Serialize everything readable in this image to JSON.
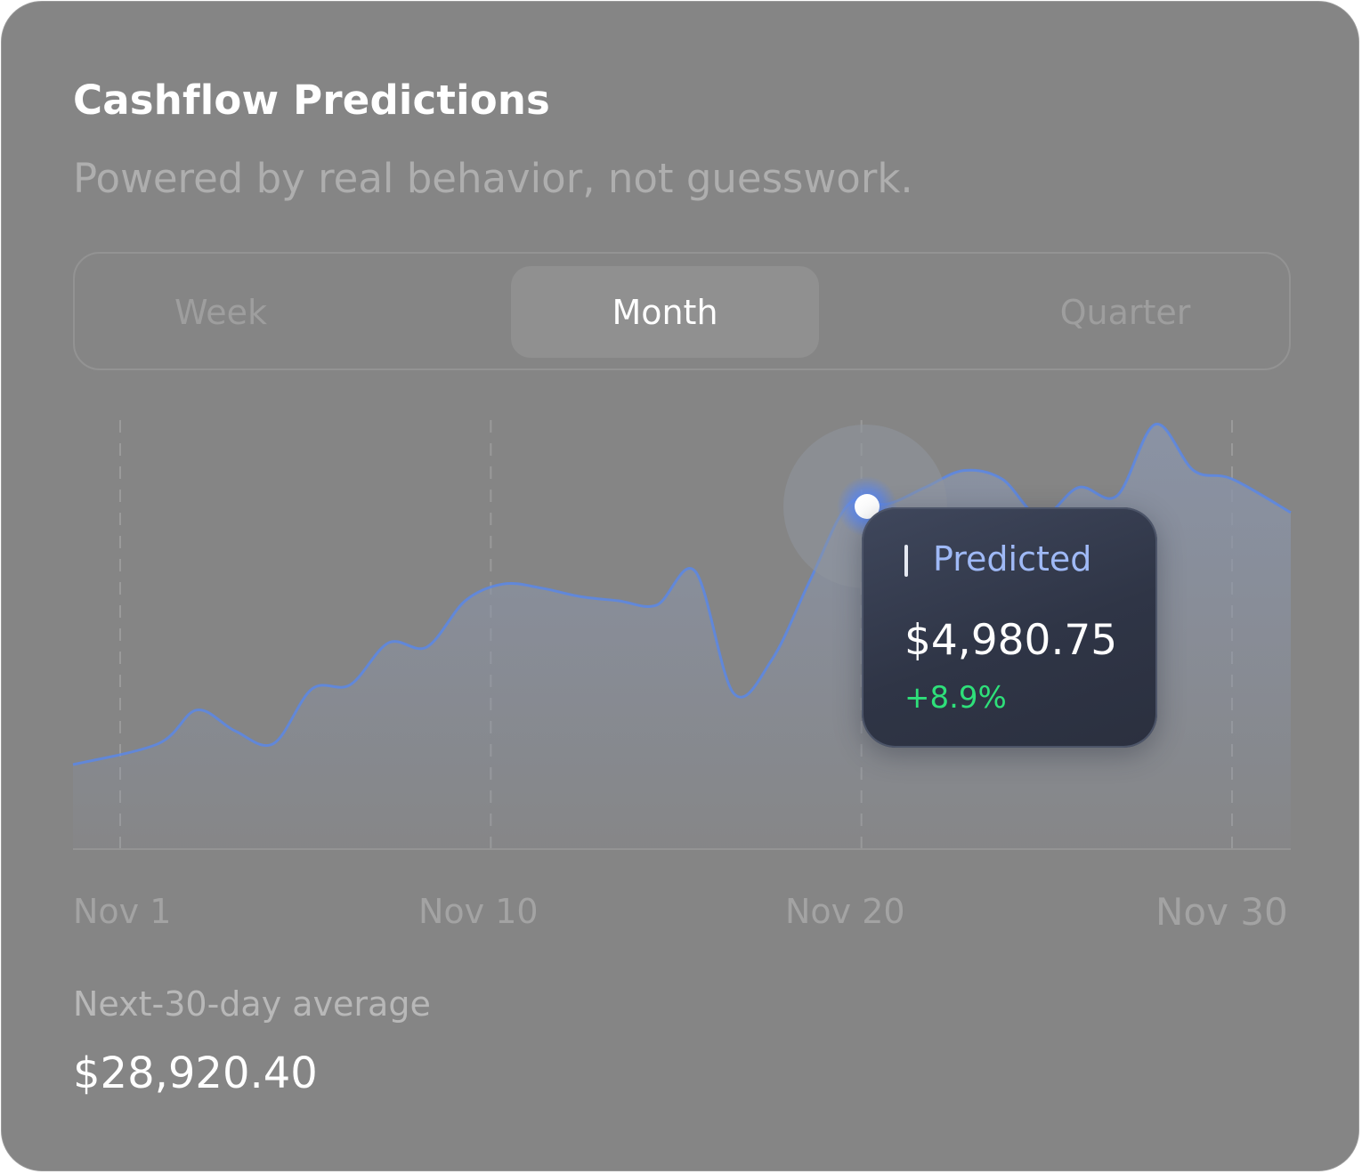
{
  "header": {
    "title": "Cashflow Predictions",
    "subtitle": "Powered by real behavior, not guesswork."
  },
  "tabs": [
    {
      "label": "Week",
      "active": false
    },
    {
      "label": "Month",
      "active": true
    },
    {
      "label": "Quarter",
      "active": false
    }
  ],
  "tooltip": {
    "label": "Predicted",
    "value": "$4,980.75",
    "change": "+8.9%"
  },
  "summary": {
    "label": "Next-30-day average",
    "value": "$28,920.40"
  },
  "colors": {
    "line": "#5b87e6",
    "area": "#8a93a6",
    "positive": "#2ee07a",
    "highlight_point": "#ffffff"
  },
  "chart_data": {
    "type": "area",
    "x_tick_labels": [
      "Nov 1",
      "Nov 10",
      "Nov 20",
      "Nov 30"
    ],
    "x_domain": [
      1,
      34
    ],
    "y_domain": [
      0,
      100
    ],
    "grid": "vertical dashed lines at tick labels",
    "highlight": {
      "x": 21,
      "label": "Predicted",
      "value": "$4,980.75",
      "change": "+8.9%"
    },
    "series": [
      {
        "points": [
          [
            1,
            18
          ],
          [
            2,
            23
          ],
          [
            3,
            31
          ],
          [
            4,
            26
          ],
          [
            5,
            23
          ],
          [
            6,
            36
          ],
          [
            7,
            37
          ],
          [
            8,
            47
          ],
          [
            9,
            46
          ],
          [
            10,
            57
          ],
          [
            11,
            61
          ],
          [
            12,
            60
          ],
          [
            13,
            58
          ],
          [
            14,
            57
          ],
          [
            15,
            56
          ],
          [
            16,
            64
          ],
          [
            17,
            35
          ],
          [
            18,
            43
          ],
          [
            19,
            62
          ],
          [
            20,
            80
          ],
          [
            21,
            80
          ],
          [
            22,
            84
          ],
          [
            23,
            88
          ],
          [
            24,
            86
          ],
          [
            25,
            77
          ],
          [
            26,
            84
          ],
          [
            27,
            82
          ],
          [
            28,
            99
          ],
          [
            29,
            88
          ],
          [
            30,
            86
          ],
          [
            31,
            78
          ]
        ]
      }
    ]
  }
}
